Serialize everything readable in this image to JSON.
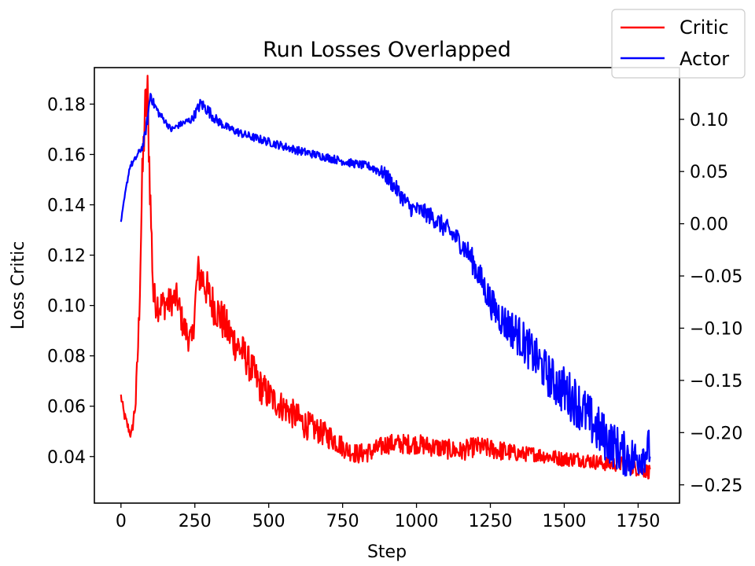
{
  "chart_data": {
    "type": "line",
    "title": "Run Losses Overlapped",
    "xlabel": "Step",
    "ylabel": "Loss Critic",
    "y2label": "",
    "xlim": [
      -90,
      1890
    ],
    "ylim": [
      0.0215,
      0.1945
    ],
    "y2lim": [
      -0.2675,
      0.1495
    ],
    "xticks": [
      0,
      250,
      500,
      750,
      1000,
      1250,
      1500,
      1750
    ],
    "yticks": [
      0.04,
      0.06,
      0.08,
      0.1,
      0.12,
      0.14,
      0.16,
      0.18
    ],
    "ytick_labels": [
      "0.04",
      "0.06",
      "0.08",
      "0.10",
      "0.12",
      "0.14",
      "0.16",
      "0.18"
    ],
    "y2ticks": [
      -0.25,
      -0.2,
      -0.15,
      -0.1,
      -0.05,
      0.0,
      0.05,
      0.1
    ],
    "y2tick_labels": [
      "−0.25",
      "−0.20",
      "−0.15",
      "−0.10",
      "−0.05",
      "0.00",
      "0.05",
      "0.10"
    ],
    "grid": false,
    "legend_position": "top-right",
    "series": [
      {
        "name": "Critic",
        "axis": "left",
        "color": "#ff0000",
        "x": [
          0,
          10,
          20,
          35,
          50,
          60,
          70,
          80,
          90,
          100,
          110,
          130,
          160,
          190,
          210,
          240,
          260,
          280,
          300,
          330,
          370,
          420,
          470,
          520,
          570,
          620,
          670,
          720,
          760,
          800,
          850,
          900,
          950,
          1000,
          1050,
          1100,
          1150,
          1200,
          1250,
          1300,
          1350,
          1400,
          1450,
          1500,
          1550,
          1600,
          1650,
          1700,
          1750,
          1790
        ],
        "values": [
          0.064,
          0.057,
          0.053,
          0.048,
          0.062,
          0.09,
          0.14,
          0.175,
          0.183,
          0.14,
          0.103,
          0.1,
          0.101,
          0.103,
          0.092,
          0.085,
          0.113,
          0.11,
          0.103,
          0.097,
          0.088,
          0.08,
          0.068,
          0.062,
          0.058,
          0.053,
          0.05,
          0.047,
          0.043,
          0.041,
          0.042,
          0.045,
          0.045,
          0.045,
          0.044,
          0.043,
          0.042,
          0.044,
          0.043,
          0.042,
          0.041,
          0.041,
          0.04,
          0.039,
          0.039,
          0.038,
          0.037,
          0.037,
          0.035,
          0.034
        ],
        "noise": [
          0.002,
          0.002,
          0.002,
          0.002,
          0.004,
          0.008,
          0.012,
          0.012,
          0.012,
          0.01,
          0.007,
          0.007,
          0.006,
          0.006,
          0.006,
          0.006,
          0.008,
          0.008,
          0.008,
          0.008,
          0.008,
          0.007,
          0.007,
          0.006,
          0.006,
          0.006,
          0.005,
          0.005,
          0.004,
          0.004,
          0.004,
          0.004,
          0.004,
          0.004,
          0.004,
          0.004,
          0.004,
          0.004,
          0.004,
          0.004,
          0.003,
          0.003,
          0.003,
          0.003,
          0.003,
          0.003,
          0.003,
          0.003,
          0.003,
          0.003
        ]
      },
      {
        "name": "Actor",
        "axis": "right",
        "color": "#0000ff",
        "x": [
          0,
          15,
          30,
          45,
          60,
          75,
          90,
          100,
          110,
          130,
          150,
          170,
          200,
          240,
          270,
          290,
          320,
          360,
          420,
          480,
          540,
          600,
          660,
          720,
          780,
          840,
          880,
          900,
          940,
          980,
          1020,
          1060,
          1100,
          1140,
          1180,
          1220,
          1260,
          1300,
          1340,
          1380,
          1420,
          1460,
          1500,
          1540,
          1580,
          1620,
          1660,
          1700,
          1740,
          1790
        ],
        "values": [
          0.002,
          0.03,
          0.055,
          0.06,
          0.068,
          0.075,
          0.1,
          0.125,
          0.115,
          0.105,
          0.098,
          0.09,
          0.095,
          0.1,
          0.115,
          0.11,
          0.1,
          0.092,
          0.085,
          0.08,
          0.075,
          0.07,
          0.066,
          0.062,
          0.058,
          0.055,
          0.05,
          0.045,
          0.03,
          0.015,
          0.012,
          0.005,
          -0.005,
          -0.015,
          -0.03,
          -0.055,
          -0.08,
          -0.095,
          -0.105,
          -0.12,
          -0.135,
          -0.15,
          -0.16,
          -0.17,
          -0.185,
          -0.2,
          -0.21,
          -0.22,
          -0.225,
          -0.215
        ],
        "noise": [
          0.001,
          0.002,
          0.003,
          0.003,
          0.003,
          0.004,
          0.006,
          0.006,
          0.005,
          0.004,
          0.003,
          0.003,
          0.003,
          0.004,
          0.006,
          0.006,
          0.005,
          0.004,
          0.004,
          0.004,
          0.004,
          0.004,
          0.004,
          0.004,
          0.004,
          0.004,
          0.006,
          0.008,
          0.008,
          0.008,
          0.008,
          0.009,
          0.01,
          0.01,
          0.012,
          0.014,
          0.016,
          0.018,
          0.02,
          0.02,
          0.02,
          0.022,
          0.024,
          0.024,
          0.024,
          0.024,
          0.022,
          0.022,
          0.02,
          0.02
        ]
      }
    ]
  }
}
